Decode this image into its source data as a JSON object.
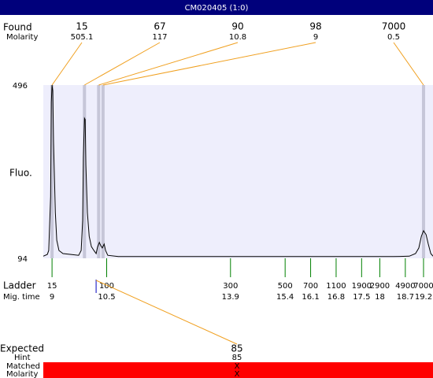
{
  "window": {
    "title": "CM020405 (1:0)"
  },
  "chart_data": {
    "type": "line",
    "y_label": "Fluo.",
    "color": "#000000",
    "xlim": [
      8.76,
      19.46
    ],
    "ylim": [
      94,
      496
    ],
    "yticks": [
      94,
      496
    ],
    "x": [
      8.76,
      8.87,
      8.91,
      8.96,
      8.98,
      9.0,
      9.02,
      9.04,
      9.09,
      9.13,
      9.19,
      9.3,
      9.52,
      9.73,
      9.8,
      9.84,
      9.86,
      9.89,
      9.91,
      9.93,
      9.97,
      10.02,
      10.08,
      10.15,
      10.21,
      10.25,
      10.3,
      10.34,
      10.38,
      10.43,
      10.47,
      10.53,
      10.82,
      11.9,
      14.06,
      16.22,
      18.38,
      18.81,
      18.98,
      19.07,
      19.14,
      19.2,
      19.27,
      19.33,
      19.4,
      19.46
    ],
    "values": [
      99,
      103,
      112,
      237,
      456,
      496,
      483,
      364,
      200,
      136,
      112,
      105,
      103,
      101,
      112,
      182,
      328,
      419,
      416,
      310,
      200,
      145,
      121,
      112,
      105,
      120,
      131,
      123,
      118,
      127,
      112,
      101,
      98,
      98,
      98,
      98,
      98,
      99,
      105,
      118,
      145,
      158,
      149,
      127,
      105,
      99
    ]
  },
  "found": {
    "label": "Found",
    "sub_label": "Molarity",
    "peaks": [
      {
        "size": 15,
        "molarity": 505.1,
        "time": 9.0
      },
      {
        "size": 67,
        "molarity": 117,
        "time": 9.89
      },
      {
        "size": 90,
        "molarity": 10.8,
        "time": 10.28
      },
      {
        "size": 98,
        "molarity": 9,
        "time": 10.4
      },
      {
        "size": 7000,
        "molarity": 0.5,
        "time": 19.2
      }
    ]
  },
  "ladder": {
    "label": "Ladder",
    "sub_label": "Mig. time",
    "peaks": [
      {
        "size": 15,
        "time": 9
      },
      {
        "size": 100,
        "time": 10.5
      },
      {
        "size": 300,
        "time": 13.9
      },
      {
        "size": 500,
        "time": 15.4
      },
      {
        "size": 700,
        "time": 16.1
      },
      {
        "size": 1100,
        "time": 16.8
      },
      {
        "size": 1900,
        "time": 17.5
      },
      {
        "size": 2900,
        "time": 18
      },
      {
        "size": 4900,
        "time": 18.7
      },
      {
        "size": 7000,
        "time": 19.2
      }
    ]
  },
  "expected": {
    "label": "Expected",
    "value": 85,
    "time": 10.21
  },
  "hint": {
    "label": "Hint",
    "value": 85
  },
  "matched": {
    "label": "Matched",
    "value": "X"
  },
  "molarity": {
    "label": "Molarity",
    "value": "X"
  }
}
